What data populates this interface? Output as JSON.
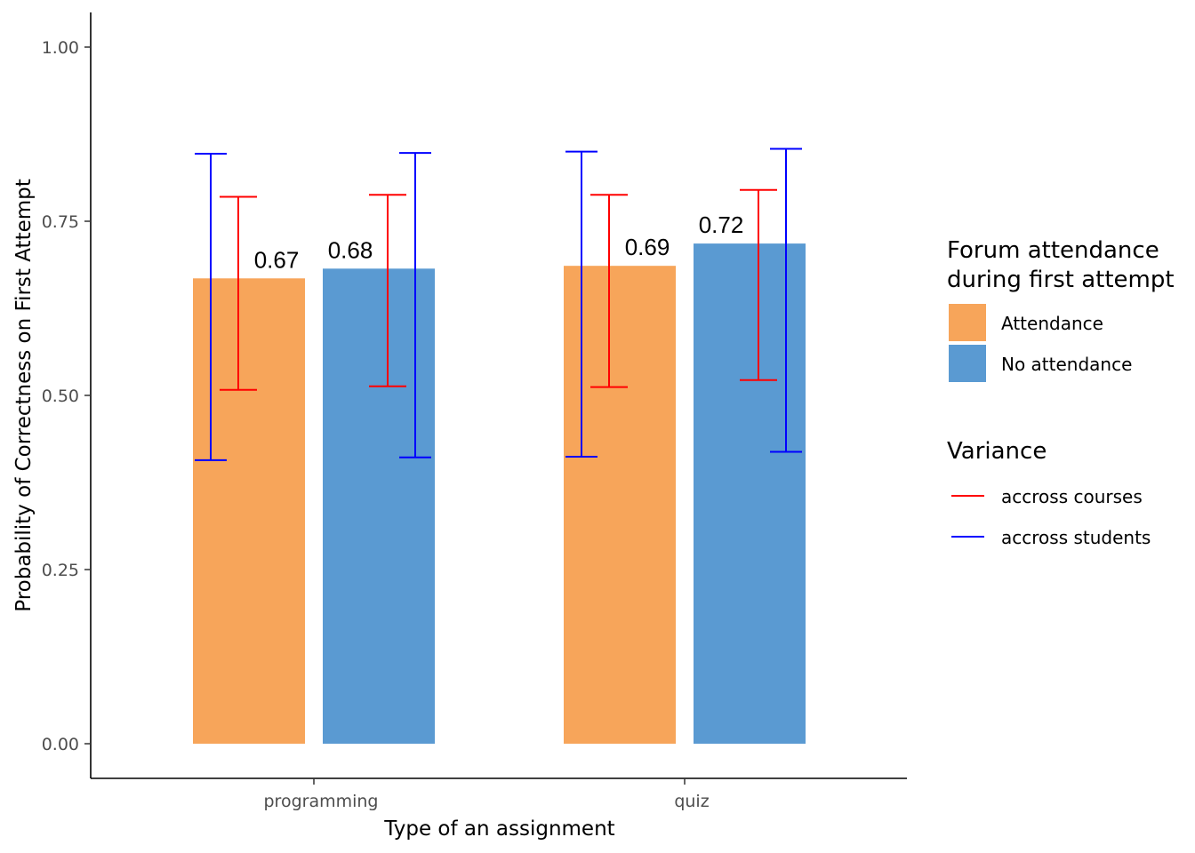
{
  "chart_data": {
    "type": "bar",
    "xlabel": "Type of an assignment",
    "ylabel": "Probability of Correctness on First Attempt",
    "ylim": [
      -0.05,
      1.05
    ],
    "yticks": [
      "0.00",
      "0.25",
      "0.50",
      "0.75",
      "1.00"
    ],
    "ytick_values": [
      0,
      0.25,
      0.5,
      0.75,
      1.0
    ],
    "categories": [
      "programming",
      "quiz"
    ],
    "grid": false,
    "series": [
      {
        "name": "Attendance",
        "color": "#F7A55A",
        "values": [
          0.668,
          0.686
        ],
        "labels": [
          "0.67",
          "0.69"
        ],
        "ci_courses": [
          [
            0.508,
            0.785
          ],
          [
            0.512,
            0.788
          ]
        ],
        "ci_students": [
          [
            0.407,
            0.847
          ],
          [
            0.412,
            0.85
          ]
        ]
      },
      {
        "name": "No attendance",
        "color": "#5A9AD2",
        "values": [
          0.682,
          0.718
        ],
        "labels": [
          "0.68",
          "0.72"
        ],
        "ci_courses": [
          [
            0.513,
            0.788
          ],
          [
            0.522,
            0.795
          ]
        ],
        "ci_students": [
          [
            0.411,
            0.848
          ],
          [
            0.419,
            0.854
          ]
        ]
      }
    ],
    "legend": {
      "placement": "right",
      "fill_title_line1": "Forum attendance",
      "fill_title_line2": "during first attempt",
      "fill_items": [
        "Attendance",
        "No attendance"
      ],
      "line_title": "Variance",
      "line_items": [
        {
          "label": "accross courses",
          "color": "#FF0000"
        },
        {
          "label": "accross students",
          "color": "#0000FF"
        }
      ]
    }
  }
}
